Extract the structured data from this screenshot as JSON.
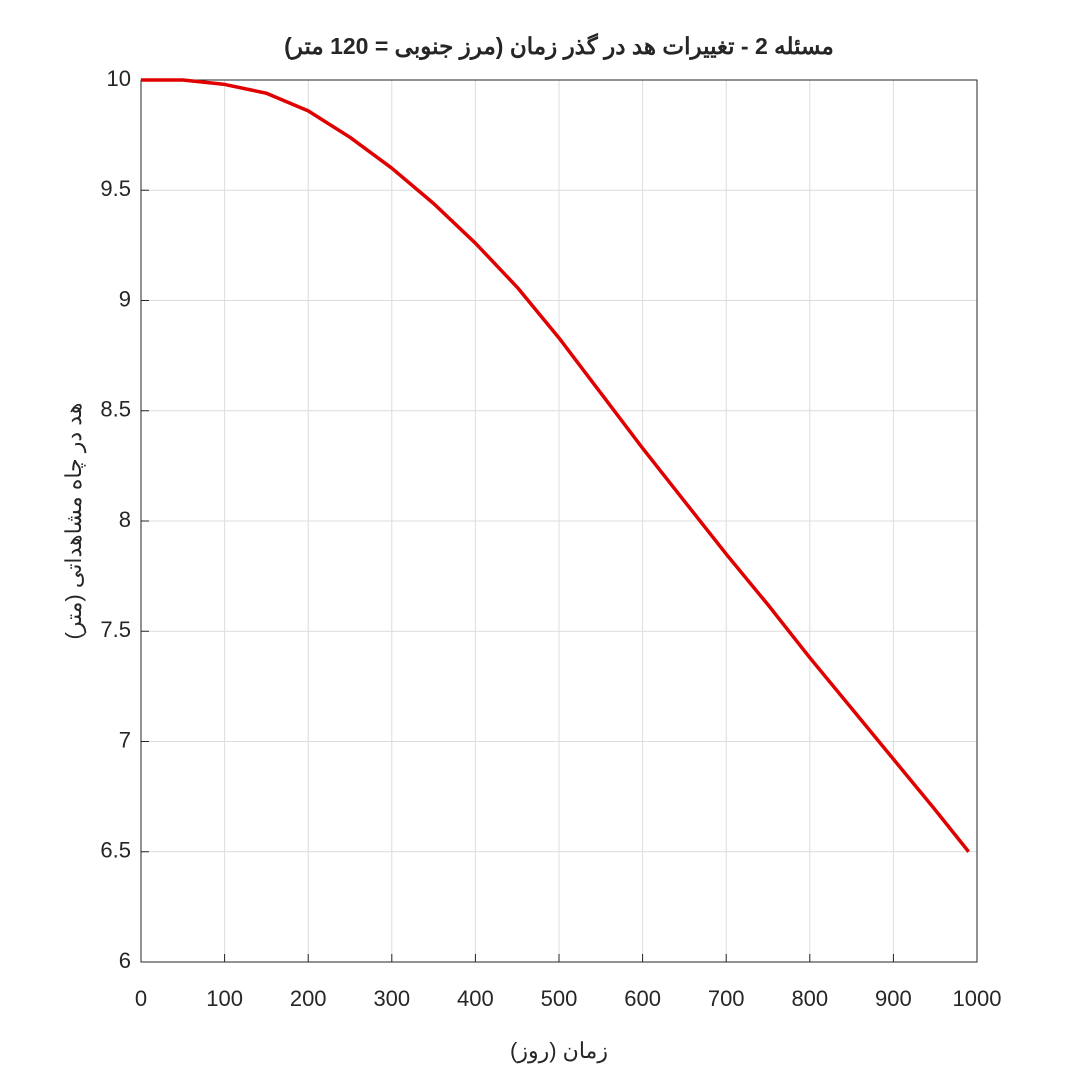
{
  "chart_data": {
    "type": "line",
    "title": "مسئله 2 - تغییرات هد در گذر زمان (مرز جنوبی = 120 متر)",
    "xlabel": "زمان (روز)",
    "ylabel": "هد در چاه مشاهداتی (متر)",
    "x": [
      0,
      50,
      100,
      150,
      200,
      250,
      300,
      350,
      400,
      450,
      500,
      550,
      600,
      650,
      700,
      750,
      800,
      850,
      900,
      950,
      990
    ],
    "series": [
      {
        "color": "#e00000",
        "values": [
          10,
          10,
          9.98,
          9.94,
          9.86,
          9.74,
          9.6,
          9.44,
          9.26,
          9.06,
          8.83,
          8.58,
          8.33,
          8.09,
          7.85,
          7.62,
          7.38,
          7.15,
          6.92,
          6.69,
          6.5
        ]
      }
    ],
    "xlim": [
      0,
      1000
    ],
    "xticks": [
      0,
      100,
      200,
      300,
      400,
      500,
      600,
      700,
      800,
      900,
      1000
    ],
    "ylim": [
      6,
      10
    ],
    "yticks": [
      6,
      6.5,
      7,
      7.5,
      8,
      8.5,
      9,
      9.5,
      10
    ],
    "grid": true
  }
}
